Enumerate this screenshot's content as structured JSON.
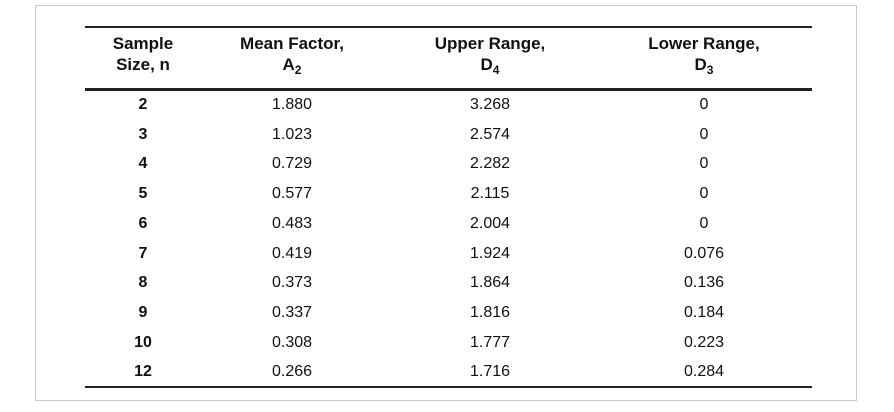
{
  "table": {
    "header": [
      {
        "line1": "Sample",
        "line2": "Size, n"
      },
      {
        "line1": "Mean Factor,",
        "symbol": "A",
        "subscript": "2"
      },
      {
        "line1": "Upper Range,",
        "symbol": "D",
        "subscript": "4"
      },
      {
        "line1": "Lower Range,",
        "symbol": "D",
        "subscript": "3"
      }
    ],
    "rows": [
      [
        "2",
        "1.880",
        "3.268",
        "0"
      ],
      [
        "3",
        "1.023",
        "2.574",
        "0"
      ],
      [
        "4",
        "0.729",
        "2.282",
        "0"
      ],
      [
        "5",
        "0.577",
        "2.115",
        "0"
      ],
      [
        "6",
        "0.483",
        "2.004",
        "0"
      ],
      [
        "7",
        "0.419",
        "1.924",
        "0.076"
      ],
      [
        "8",
        "0.373",
        "1.864",
        "0.136"
      ],
      [
        "9",
        "0.337",
        "1.816",
        "0.184"
      ],
      [
        "10",
        "0.308",
        "1.777",
        "0.223"
      ],
      [
        "12",
        "0.266",
        "1.716",
        "0.284"
      ]
    ]
  }
}
